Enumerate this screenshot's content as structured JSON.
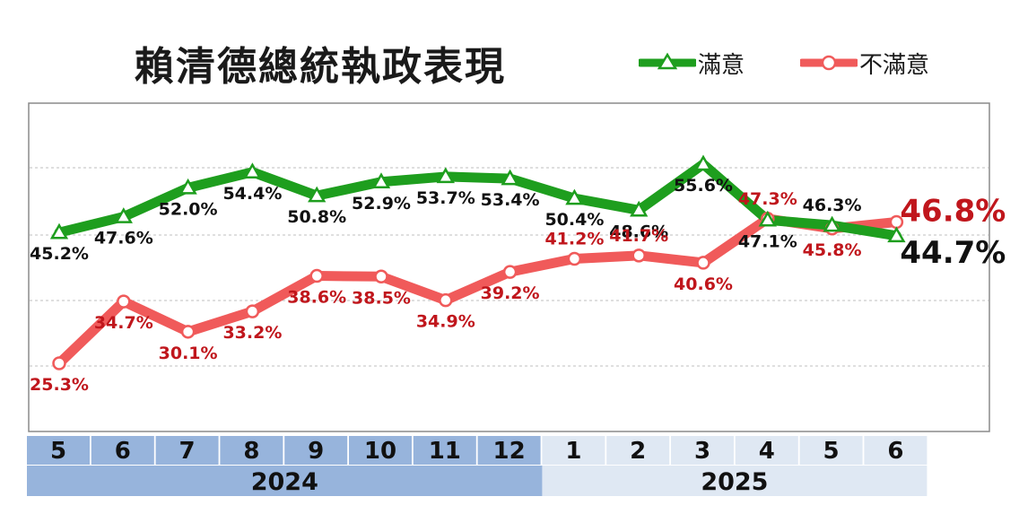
{
  "chart_data": {
    "type": "line",
    "title": "賴清德總統執政表現",
    "categories": [
      "5",
      "6",
      "7",
      "8",
      "9",
      "10",
      "11",
      "12",
      "1",
      "2",
      "3",
      "4",
      "5",
      "6"
    ],
    "years": [
      {
        "label": "2024",
        "from": 0,
        "to": 7
      },
      {
        "label": "2025",
        "from": 8,
        "to": 13
      }
    ],
    "series": [
      {
        "name": "滿意",
        "color": "#1e9e1e",
        "marker": "triangle",
        "values": [
          45.2,
          47.6,
          52.0,
          54.4,
          50.8,
          52.9,
          53.7,
          53.4,
          50.4,
          48.6,
          55.6,
          47.1,
          46.3,
          44.7
        ],
        "labels": [
          "45.2%",
          "47.6%",
          "52.0%",
          "54.4%",
          "50.8%",
          "52.9%",
          "53.7%",
          "53.4%",
          "50.4%",
          "48.6%",
          "55.6%",
          "47.1%",
          "46.3%",
          "44.7%"
        ]
      },
      {
        "name": "不滿意",
        "color": "#f05a5a",
        "marker": "circle",
        "values": [
          25.3,
          34.7,
          30.1,
          33.2,
          38.6,
          38.5,
          34.9,
          39.2,
          41.2,
          41.7,
          40.6,
          47.3,
          45.8,
          46.8
        ],
        "labels": [
          "25.3%",
          "34.7%",
          "30.1%",
          "33.2%",
          "38.6%",
          "38.5%",
          "34.9%",
          "39.2%",
          "41.2%",
          "41.7%",
          "40.6%",
          "47.3%",
          "45.8%",
          "46.8%"
        ]
      }
    ],
    "grid": true,
    "legend_position": "top-right",
    "label_colors": {
      "satisfied": "#111111",
      "dissatisfied": "#c0161c"
    },
    "axis_colors": {
      "year_2024": "#97b4dc",
      "year_2025": "#dfe8f3"
    }
  }
}
